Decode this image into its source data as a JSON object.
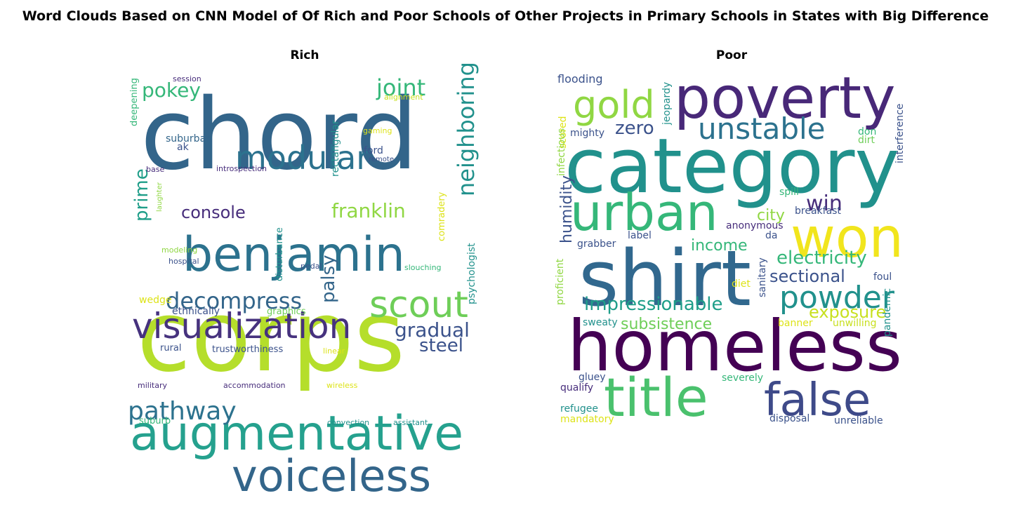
{
  "figure": {
    "title": "Word Clouds Based on CNN Model of Of Rich and Poor Schools of Other Projects in Primary Schools in States with Big Difference"
  },
  "chart_data": [
    {
      "type": "wordcloud",
      "title": "Rich",
      "words": [
        {
          "text": "chord",
          "color": "#33658a"
        },
        {
          "text": "corps",
          "color": "#b5de2b"
        },
        {
          "text": "benjamin",
          "color": "#2c728e"
        },
        {
          "text": "modular",
          "color": "#2c728e"
        },
        {
          "text": "augmentative",
          "color": "#25a18e"
        },
        {
          "text": "voiceless",
          "color": "#33658a"
        },
        {
          "text": "visualization",
          "color": "#46327e"
        },
        {
          "text": "scout",
          "color": "#6ece58"
        },
        {
          "text": "decompress",
          "color": "#33658a"
        },
        {
          "text": "pathway",
          "color": "#2c728e"
        },
        {
          "text": "neighboring",
          "color": "#21918c"
        },
        {
          "text": "gradual",
          "color": "#3b528b"
        },
        {
          "text": "joint",
          "color": "#35b779"
        },
        {
          "text": "franklin",
          "color": "#90d743"
        },
        {
          "text": "pokey",
          "color": "#35b779"
        },
        {
          "text": "console",
          "color": "#472d7b"
        },
        {
          "text": "prime",
          "color": "#1f9e89"
        },
        {
          "text": "palsy",
          "color": "#33658a"
        },
        {
          "text": "steel",
          "color": "#3b528b"
        },
        {
          "text": "suburban",
          "color": "#33658a"
        },
        {
          "text": "ak",
          "color": "#3b528b"
        },
        {
          "text": "ford",
          "color": "#3b528b"
        },
        {
          "text": "rectangular",
          "color": "#21918c"
        },
        {
          "text": "deepening",
          "color": "#35b779"
        },
        {
          "text": "session",
          "color": "#472d7b"
        },
        {
          "text": "alignment",
          "color": "#c8e020"
        },
        {
          "text": "gaming",
          "color": "#dde318"
        },
        {
          "text": "remote",
          "color": "#3b528b"
        },
        {
          "text": "base",
          "color": "#472d7b"
        },
        {
          "text": "introspection",
          "color": "#472d7b"
        },
        {
          "text": "laughter",
          "color": "#90d743"
        },
        {
          "text": "comradery",
          "color": "#dde318"
        },
        {
          "text": "modeling",
          "color": "#90d743"
        },
        {
          "text": "hospital",
          "color": "#3b528b"
        },
        {
          "text": "disturbance",
          "color": "#21918c"
        },
        {
          "text": "pedal",
          "color": "#3b528b"
        },
        {
          "text": "slouching",
          "color": "#35b779"
        },
        {
          "text": "psychologist",
          "color": "#21918c"
        },
        {
          "text": "wedge",
          "color": "#dde318"
        },
        {
          "text": "ethnically",
          "color": "#3b528b"
        },
        {
          "text": "graphics",
          "color": "#6ece58"
        },
        {
          "text": "rural",
          "color": "#3b528b"
        },
        {
          "text": "trustworthiness",
          "color": "#3b528b"
        },
        {
          "text": "linear",
          "color": "#dde318"
        },
        {
          "text": "military",
          "color": "#472d7b"
        },
        {
          "text": "accommodation",
          "color": "#472d7b"
        },
        {
          "text": "wireless",
          "color": "#dde318"
        },
        {
          "text": "suburb",
          "color": "#35b779"
        },
        {
          "text": "convection",
          "color": "#21918c"
        },
        {
          "text": "assistant",
          "color": "#21918c"
        }
      ]
    },
    {
      "type": "wordcloud",
      "title": "Poor",
      "words": [
        {
          "text": "poverty",
          "color": "#482878"
        },
        {
          "text": "category",
          "color": "#21918c"
        },
        {
          "text": "gold",
          "color": "#90d743"
        },
        {
          "text": "unstable",
          "color": "#2c728e"
        },
        {
          "text": "zero",
          "color": "#3b528b"
        },
        {
          "text": "urban",
          "color": "#35b779"
        },
        {
          "text": "won",
          "color": "#f1e51d"
        },
        {
          "text": "shirt",
          "color": "#31688e"
        },
        {
          "text": "win",
          "color": "#472d7b"
        },
        {
          "text": "city",
          "color": "#90d743"
        },
        {
          "text": "electricity",
          "color": "#35b779"
        },
        {
          "text": "income",
          "color": "#35b779"
        },
        {
          "text": "sectional",
          "color": "#3b528b"
        },
        {
          "text": "powder",
          "color": "#21918c"
        },
        {
          "text": "impressionable",
          "color": "#1f9e89"
        },
        {
          "text": "exposure",
          "color": "#c8e020"
        },
        {
          "text": "subsistence",
          "color": "#6ece58"
        },
        {
          "text": "homeless",
          "color": "#440154"
        },
        {
          "text": "title",
          "color": "#4ac16d"
        },
        {
          "text": "false",
          "color": "#3e4a89"
        },
        {
          "text": "flooding",
          "color": "#3b528b"
        },
        {
          "text": "jeopardy",
          "color": "#21918c"
        },
        {
          "text": "mighty",
          "color": "#3b528b"
        },
        {
          "text": "scored",
          "color": "#dde318"
        },
        {
          "text": "don",
          "color": "#35b779"
        },
        {
          "text": "dirt",
          "color": "#6ece58"
        },
        {
          "text": "infectious",
          "color": "#90d743"
        },
        {
          "text": "spill",
          "color": "#35b779"
        },
        {
          "text": "breakfast",
          "color": "#3b528b"
        },
        {
          "text": "interference",
          "color": "#3b528b"
        },
        {
          "text": "anonymous",
          "color": "#472d7b"
        },
        {
          "text": "da",
          "color": "#3b528b"
        },
        {
          "text": "label",
          "color": "#3b528b"
        },
        {
          "text": "grabber",
          "color": "#3b528b"
        },
        {
          "text": "humidity",
          "color": "#3b528b"
        },
        {
          "text": "diet",
          "color": "#dde318"
        },
        {
          "text": "foul",
          "color": "#3b528b"
        },
        {
          "text": "sanitary",
          "color": "#3b528b"
        },
        {
          "text": "sweaty",
          "color": "#21918c"
        },
        {
          "text": "banner",
          "color": "#dde318"
        },
        {
          "text": "unwilling",
          "color": "#c8e020"
        },
        {
          "text": "proficient",
          "color": "#90d743"
        },
        {
          "text": "pandemic",
          "color": "#21918c"
        },
        {
          "text": "gluey",
          "color": "#3b528b"
        },
        {
          "text": "severely",
          "color": "#35b779"
        },
        {
          "text": "qualify",
          "color": "#472d7b"
        },
        {
          "text": "refugee",
          "color": "#21918c"
        },
        {
          "text": "mandatory",
          "color": "#dde318"
        },
        {
          "text": "disposal",
          "color": "#3b528b"
        },
        {
          "text": "unreliable",
          "color": "#3b528b"
        }
      ]
    }
  ]
}
